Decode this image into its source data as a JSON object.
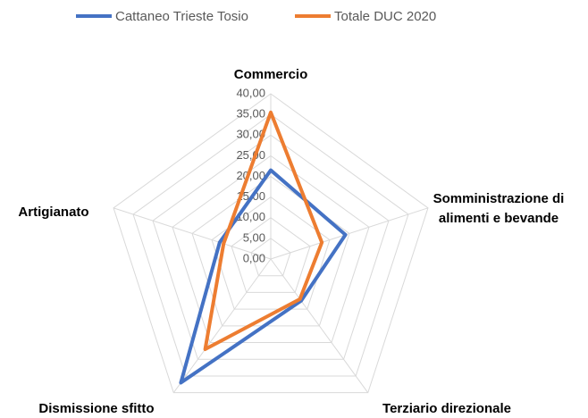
{
  "chart_data": {
    "type": "radar",
    "categories": [
      "Commercio",
      "Somministrazione di alimenti e bevande",
      "Terziario direzionale",
      "Dismissione sfitto",
      "Artigianato"
    ],
    "series": [
      {
        "name": "Cattaneo Trieste Tosio",
        "color": "#4472c4",
        "values": [
          21.5,
          19,
          12.5,
          37,
          13
        ]
      },
      {
        "name": "Totale DUC 2020",
        "color": "#ed7d31",
        "values": [
          35.5,
          13,
          12,
          27,
          12
        ]
      }
    ],
    "ylim": [
      0,
      40
    ],
    "yticks": [
      {
        "value": 0,
        "label": "0,00"
      },
      {
        "value": 5,
        "label": "5,00"
      },
      {
        "value": 10,
        "label": "10,00"
      },
      {
        "value": 15,
        "label": "15,00"
      },
      {
        "value": 20,
        "label": "20,00"
      },
      {
        "value": 25,
        "label": "25,00"
      },
      {
        "value": 30,
        "label": "30,00"
      },
      {
        "value": 35,
        "label": "35,00"
      },
      {
        "value": 40,
        "label": "40,00"
      }
    ],
    "grid": true,
    "legend": "top"
  }
}
